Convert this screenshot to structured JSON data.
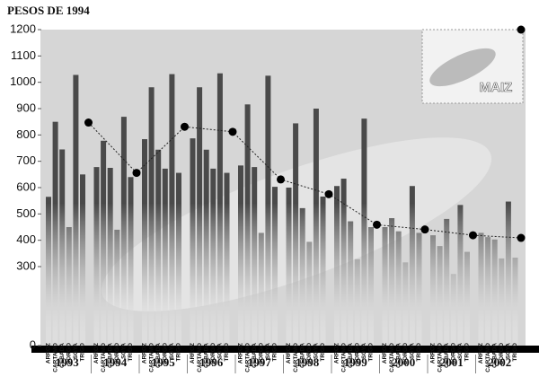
{
  "chart_data": {
    "type": "bar",
    "title": "PESOS DE 1994",
    "categories": [
      "1993",
      "1994",
      "1995",
      "1996",
      "1997",
      "1998",
      "1999",
      "2000",
      "2001",
      "2002"
    ],
    "series": [
      {
        "name": "ARROZ",
        "color": "#4a4a4a",
        "values": [
          565,
          678,
          784,
          787,
          684,
          600,
          606,
          450,
          419,
          428
        ]
      },
      {
        "name": "CARTAMO",
        "color": "#4a4a4a",
        "values": [
          850,
          778,
          981,
          981,
          916,
          844,
          634,
          484,
          378,
          412
        ]
      },
      {
        "name": "CEBADA",
        "color": "#4a4a4a",
        "values": [
          745,
          675,
          744,
          744,
          678,
          522,
          472,
          434,
          481,
          403
        ]
      },
      {
        "name": "SORGO",
        "color": "#4a4a4a",
        "values": [
          450,
          440,
          672,
          672,
          428,
          394,
          328,
          316,
          272,
          331
        ]
      },
      {
        "name": "SOYA",
        "color": "#4a4a4a",
        "values": [
          1028,
          869,
          1031,
          1034,
          1025,
          900,
          862,
          606,
          534,
          547
        ]
      },
      {
        "name": "TRIGO",
        "color": "#4a4a4a",
        "values": [
          650,
          640,
          656,
          656,
          603,
          566,
          450,
          428,
          356,
          334
        ]
      },
      {
        "name": "MAIZ",
        "type": "line",
        "color": "#000000",
        "values": [
          847,
          656,
          831,
          812,
          631,
          575,
          459,
          441,
          419,
          409
        ]
      }
    ],
    "ylim": [
      0,
      1200
    ],
    "yticks": [
      0,
      300,
      400,
      500,
      600,
      700,
      800,
      900,
      1000,
      1100,
      1200
    ]
  }
}
